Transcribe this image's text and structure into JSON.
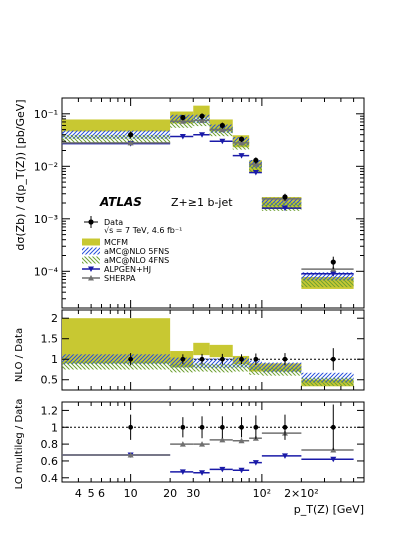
{
  "chart_data": {
    "type": "scatter",
    "experiment": "ATLAS",
    "selection": "Z+≥1 b-jet",
    "energy_lumi": "√s = 7 TeV, 4.6 fb⁻¹",
    "x_label": "p_T(Z) [GeV]",
    "x_tick_labels": [
      "4",
      "5",
      "6",
      "10",
      "20",
      "30",
      "10²",
      "2×10²"
    ],
    "x_log": true,
    "xlim": [
      3,
      600
    ],
    "bins": [
      [
        3,
        20
      ],
      [
        20,
        30
      ],
      [
        30,
        40
      ],
      [
        40,
        60
      ],
      [
        60,
        80
      ],
      [
        80,
        100
      ],
      [
        100,
        200
      ],
      [
        200,
        500
      ]
    ],
    "x_centers": [
      10,
      25,
      35,
      50,
      70,
      90,
      150,
      350
    ],
    "main": {
      "y_label": "dσ(Zb) / d(p_T(Z)) [pb/GeV]",
      "y_log": true,
      "ylim": [
        2e-05,
        0.2
      ],
      "y_tick_labels": [
        "10⁻¹",
        "10⁻²",
        "10⁻³",
        "10⁻⁴"
      ],
      "data": [
        0.04,
        0.085,
        0.09,
        0.06,
        0.033,
        0.013,
        0.0026,
        0.00015
      ],
      "data_err": [
        0.006,
        0.01,
        0.012,
        0.008,
        0.004,
        0.0018,
        0.0004,
        4e-05
      ],
      "mcfm": [
        0.06,
        0.085,
        0.11,
        0.06,
        0.03,
        0.01,
        0.002,
        6e-05
      ],
      "amcnlo_5fns": [
        0.04,
        0.08,
        0.08,
        0.052,
        0.03,
        0.011,
        0.0021,
        8e-05
      ],
      "amcnlo_4fns": [
        0.033,
        0.065,
        0.07,
        0.045,
        0.025,
        0.009,
        0.0017,
        6e-05
      ],
      "alpgen": [
        0.027,
        0.037,
        0.04,
        0.03,
        0.016,
        0.0076,
        0.0016,
        9e-05
      ],
      "sherpa": [
        0.028,
        0.072,
        0.075,
        0.05,
        0.028,
        0.011,
        0.0024,
        0.00011
      ]
    },
    "nlo_ratio": {
      "y_label": "NLO / Data",
      "ylim": [
        0.25,
        2.2
      ],
      "y_tick_labels": [
        "0.5",
        "1",
        "1.5",
        "2"
      ],
      "data_err": [
        0.15,
        0.12,
        0.13,
        0.13,
        0.12,
        0.14,
        0.15,
        0.27
      ],
      "mcfm": [
        1.45,
        1.0,
        1.25,
        1.2,
        0.98,
        0.8,
        0.8,
        0.42
      ],
      "mcfm_band": [
        0.55,
        0.2,
        0.15,
        0.15,
        0.1,
        0.1,
        0.1,
        0.08
      ],
      "amcnlo_5fns": [
        1.0,
        0.92,
        0.9,
        0.9,
        0.92,
        0.85,
        0.8,
        0.55
      ],
      "amcnlo_4fns": [
        0.85,
        0.78,
        0.8,
        0.78,
        0.8,
        0.72,
        0.7,
        0.45
      ]
    },
    "lo_ratio": {
      "y_label": "LO multileg / Data",
      "ylim": [
        0.35,
        1.3
      ],
      "y_tick_labels": [
        "0.4",
        "0.6",
        "0.8",
        "1",
        "1.2"
      ],
      "data_err": [
        0.15,
        0.12,
        0.13,
        0.13,
        0.12,
        0.14,
        0.15,
        0.27
      ],
      "alpgen": [
        0.67,
        0.47,
        0.46,
        0.5,
        0.49,
        0.58,
        0.66,
        0.62
      ],
      "sherpa": [
        0.67,
        0.8,
        0.8,
        0.85,
        0.84,
        0.87,
        0.93,
        0.73
      ]
    },
    "colors": {
      "mcfm": "#c8c832",
      "amcnlo_5fns": "#2850dc",
      "amcnlo_4fns": "#6ea032",
      "alpgen": "#1a1aa8",
      "sherpa": "#707070",
      "data": "#000000"
    },
    "legend": {
      "position": "left",
      "entries": [
        {
          "key": "data",
          "label": "Data"
        },
        {
          "key": "mcfm",
          "label": "MCFM"
        },
        {
          "key": "amcnlo_5fns",
          "label": "aMC@NLO 5FNS"
        },
        {
          "key": "amcnlo_4fns",
          "label": "aMC@NLO 4FNS"
        },
        {
          "key": "alpgen",
          "label": "ALPGEN+HJ"
        },
        {
          "key": "sherpa",
          "label": "SHERPA"
        }
      ]
    }
  }
}
